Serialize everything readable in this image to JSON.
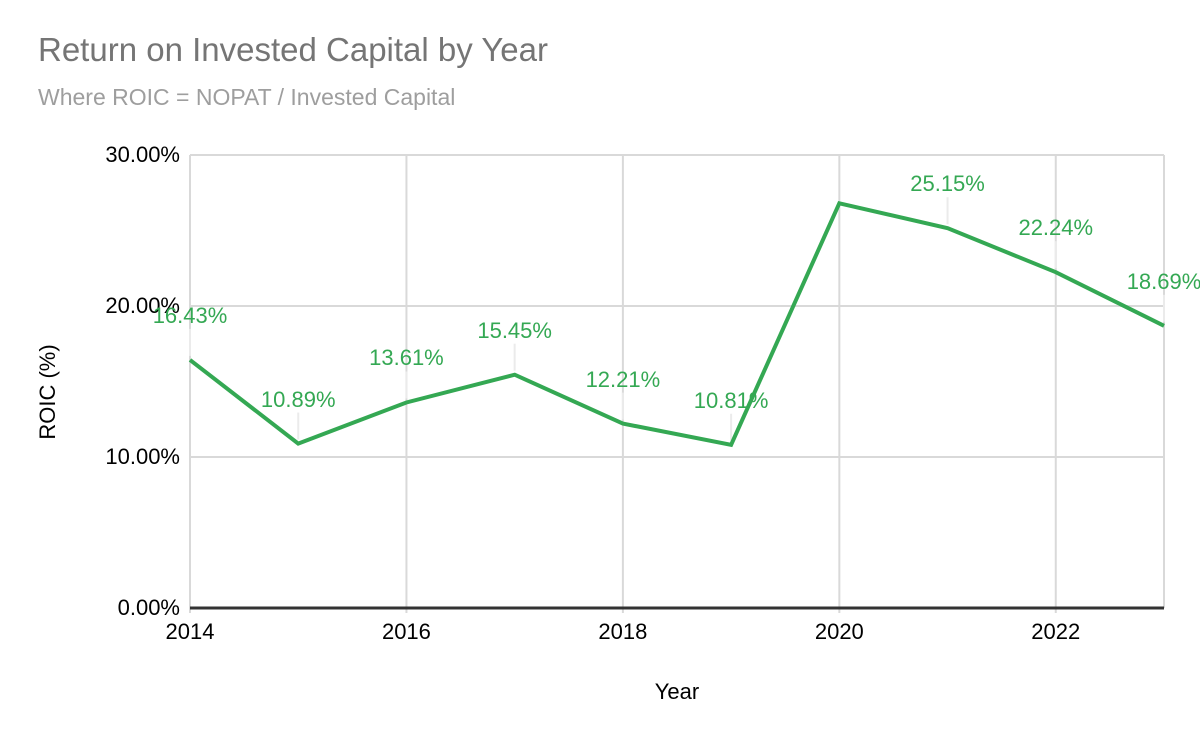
{
  "page": {
    "title": "Return on Invested Capital by Year",
    "subtitle": "Where ROIC = NOPAT / Invested Capital"
  },
  "chart_data": {
    "type": "line",
    "title": "Return on Invested Capital by Year",
    "subtitle": "Where ROIC = NOPAT / Invested Capital",
    "xlabel": "Year",
    "ylabel": "ROIC (%)",
    "x": [
      2014,
      2015,
      2016,
      2017,
      2018,
      2019,
      2020,
      2021,
      2022,
      2023
    ],
    "series": [
      {
        "name": "ROIC",
        "values": [
          16.43,
          10.89,
          13.61,
          15.45,
          12.21,
          10.81,
          26.8,
          25.15,
          22.24,
          18.69
        ],
        "point_labels": [
          "16.43%",
          "10.89%",
          "13.61%",
          "15.45%",
          "12.21%",
          "10.81%",
          null,
          "25.15%",
          "22.24%",
          "18.69%"
        ]
      }
    ],
    "xlim": [
      2014,
      2023
    ],
    "ylim": [
      0,
      30
    ],
    "x_ticks": [
      {
        "value": 2014,
        "label": "2014"
      },
      {
        "value": 2016,
        "label": "2016"
      },
      {
        "value": 2018,
        "label": "2018"
      },
      {
        "value": 2020,
        "label": "2020"
      },
      {
        "value": 2022,
        "label": "2022"
      }
    ],
    "y_ticks": [
      {
        "value": 0,
        "label": "0.00%"
      },
      {
        "value": 10,
        "label": "10.00%"
      },
      {
        "value": 20,
        "label": "20.00%"
      },
      {
        "value": 30,
        "label": "30.00%"
      }
    ],
    "grid": true,
    "legend": "none",
    "colors": {
      "line": "#34A853",
      "data_label": "#34A853",
      "grid": "#D9D9D9",
      "leader_tick": "#EBEBEB",
      "axis": "#333333",
      "tick_label": "#000000",
      "title": "#757575",
      "subtitle": "#9E9E9E"
    }
  }
}
